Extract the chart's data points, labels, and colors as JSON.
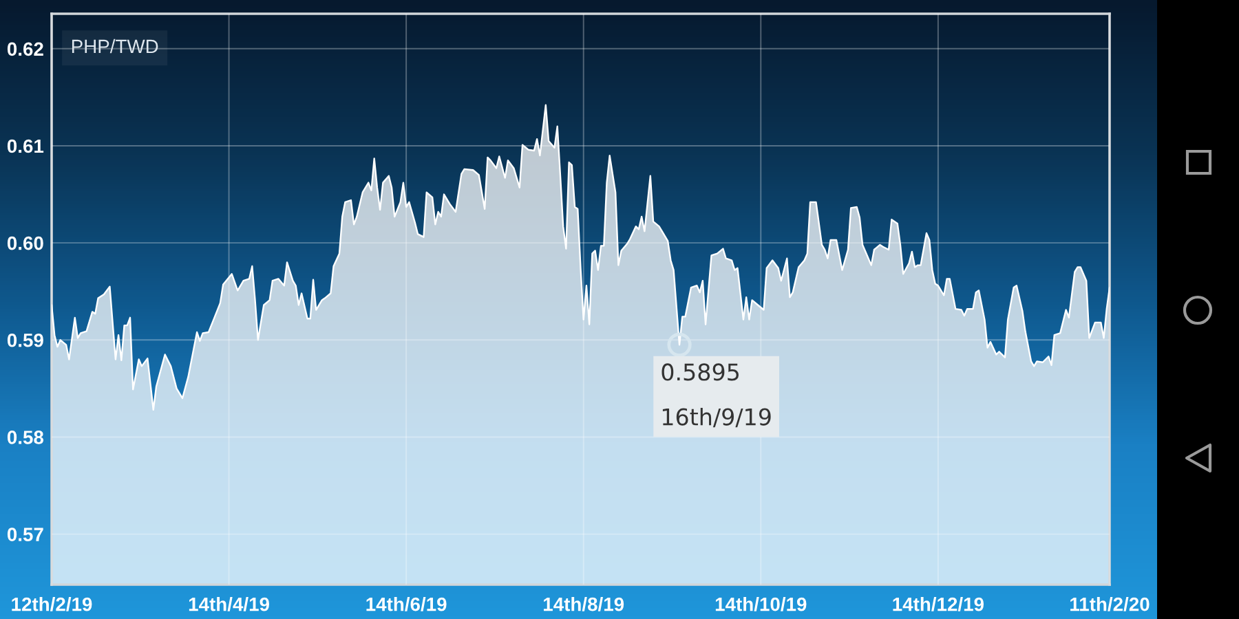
{
  "chart_data": {
    "type": "area",
    "title": "PHP/TWD",
    "x": [
      "2019-02-12",
      "2019-02-13",
      "2019-02-14",
      "2019-02-15",
      "2019-02-17",
      "2019-02-18",
      "2019-02-20",
      "2019-02-21",
      "2019-02-22",
      "2019-02-24",
      "2019-02-26",
      "2019-02-27",
      "2019-02-28",
      "2019-03-02",
      "2019-03-04",
      "2019-03-06",
      "2019-03-07",
      "2019-03-08",
      "2019-03-09",
      "2019-03-10",
      "2019-03-11",
      "2019-03-12",
      "2019-03-14",
      "2019-03-15",
      "2019-03-17",
      "2019-03-19",
      "2019-03-20",
      "2019-03-23",
      "2019-03-25",
      "2019-03-27",
      "2019-03-29",
      "2019-03-31",
      "2019-04-03",
      "2019-04-04",
      "2019-04-05",
      "2019-04-07",
      "2019-04-09",
      "2019-04-11",
      "2019-04-12",
      "2019-04-15",
      "2019-04-17",
      "2019-04-19",
      "2019-04-21",
      "2019-04-22",
      "2019-04-23",
      "2019-04-24",
      "2019-04-26",
      "2019-04-28",
      "2019-04-29",
      "2019-05-01",
      "2019-05-03",
      "2019-05-04",
      "2019-05-06",
      "2019-05-07",
      "2019-05-08",
      "2019-05-09",
      "2019-05-11",
      "2019-05-12",
      "2019-05-13",
      "2019-05-14",
      "2019-05-16",
      "2019-05-17",
      "2019-05-19",
      "2019-05-20",
      "2019-05-22",
      "2019-05-23",
      "2019-05-24",
      "2019-05-26",
      "2019-05-27",
      "2019-05-28",
      "2019-05-30",
      "2019-06-01",
      "2019-06-02",
      "2019-06-03",
      "2019-06-04",
      "2019-06-05",
      "2019-06-06",
      "2019-06-08",
      "2019-06-09",
      "2019-06-10",
      "2019-06-12",
      "2019-06-13",
      "2019-06-14",
      "2019-06-15",
      "2019-06-17",
      "2019-06-18",
      "2019-06-20",
      "2019-06-21",
      "2019-06-23",
      "2019-06-24",
      "2019-06-25",
      "2019-06-26",
      "2019-06-27",
      "2019-06-29",
      "2019-07-01",
      "2019-07-03",
      "2019-07-04",
      "2019-07-07",
      "2019-07-09",
      "2019-07-11",
      "2019-07-12",
      "2019-07-13",
      "2019-07-15",
      "2019-07-16",
      "2019-07-18",
      "2019-07-19",
      "2019-07-21",
      "2019-07-23",
      "2019-07-24",
      "2019-07-26",
      "2019-07-28",
      "2019-07-29",
      "2019-07-30",
      "2019-08-01",
      "2019-08-02",
      "2019-08-04",
      "2019-08-05",
      "2019-08-06",
      "2019-08-07",
      "2019-08-08",
      "2019-08-09",
      "2019-08-10",
      "2019-08-11",
      "2019-08-12",
      "2019-08-13",
      "2019-08-14",
      "2019-08-15",
      "2019-08-16",
      "2019-08-17",
      "2019-08-18",
      "2019-08-19",
      "2019-08-20",
      "2019-08-21",
      "2019-08-22",
      "2019-08-23",
      "2019-08-25",
      "2019-08-26",
      "2019-08-27",
      "2019-08-29",
      "2019-08-30",
      "2019-09-01",
      "2019-09-02",
      "2019-09-03",
      "2019-09-04",
      "2019-09-06",
      "2019-09-07",
      "2019-09-09",
      "2019-09-10",
      "2019-09-12",
      "2019-09-13",
      "2019-09-14",
      "2019-09-16",
      "2019-09-17",
      "2019-09-18",
      "2019-09-20",
      "2019-09-22",
      "2019-09-23",
      "2019-09-24",
      "2019-09-25",
      "2019-09-27",
      "2019-09-29",
      "2019-10-01",
      "2019-10-02",
      "2019-10-04",
      "2019-10-05",
      "2019-10-06",
      "2019-10-08",
      "2019-10-09",
      "2019-10-10",
      "2019-10-11",
      "2019-10-13",
      "2019-10-15",
      "2019-10-16",
      "2019-10-18",
      "2019-10-20",
      "2019-10-21",
      "2019-10-23",
      "2019-10-24",
      "2019-10-25",
      "2019-10-27",
      "2019-10-29",
      "2019-10-30",
      "2019-10-31",
      "2019-11-02",
      "2019-11-04",
      "2019-11-05",
      "2019-11-06",
      "2019-11-07",
      "2019-11-09",
      "2019-11-11",
      "2019-11-13",
      "2019-11-14",
      "2019-11-16",
      "2019-11-17",
      "2019-11-18",
      "2019-11-19",
      "2019-11-21",
      "2019-11-22",
      "2019-11-24",
      "2019-11-25",
      "2019-11-27",
      "2019-11-28",
      "2019-11-30",
      "2019-12-01",
      "2019-12-02",
      "2019-12-04",
      "2019-12-05",
      "2019-12-06",
      "2019-12-07",
      "2019-12-08",
      "2019-12-10",
      "2019-12-11",
      "2019-12-12",
      "2019-12-13",
      "2019-12-14",
      "2019-12-16",
      "2019-12-17",
      "2019-12-18",
      "2019-12-20",
      "2019-12-22",
      "2019-12-23",
      "2019-12-24",
      "2019-12-26",
      "2019-12-27",
      "2019-12-28",
      "2019-12-30",
      "2019-12-31",
      "2020-01-01",
      "2020-01-03",
      "2020-01-04",
      "2020-01-06",
      "2020-01-07",
      "2020-01-09",
      "2020-01-10",
      "2020-01-12",
      "2020-01-13",
      "2020-01-15",
      "2020-01-16",
      "2020-01-17",
      "2020-01-19",
      "2020-01-21",
      "2020-01-22",
      "2020-01-23",
      "2020-01-25",
      "2020-01-27",
      "2020-01-28",
      "2020-01-30",
      "2020-01-31",
      "2020-02-01",
      "2020-02-03",
      "2020-02-04",
      "2020-02-06",
      "2020-02-07",
      "2020-02-08",
      "2020-02-09",
      "2020-02-10",
      "2020-02-11"
    ],
    "series": [
      {
        "color": "#ffffff",
        "values": [
          0.5936,
          0.5905,
          0.5893,
          0.59,
          0.5895,
          0.588,
          0.5923,
          0.5902,
          0.5907,
          0.5909,
          0.5929,
          0.5927,
          0.5943,
          0.5947,
          0.5955,
          0.588,
          0.5905,
          0.5879,
          0.5915,
          0.5915,
          0.5923,
          0.5849,
          0.588,
          0.5873,
          0.5881,
          0.5828,
          0.5852,
          0.5885,
          0.5873,
          0.585,
          0.584,
          0.5862,
          0.5908,
          0.5899,
          0.5907,
          0.5908,
          0.5923,
          0.5938,
          0.5957,
          0.5968,
          0.5951,
          0.5961,
          0.5963,
          0.5976,
          0.5941,
          0.59,
          0.5936,
          0.5941,
          0.5961,
          0.5963,
          0.5956,
          0.598,
          0.5961,
          0.5956,
          0.5936,
          0.5948,
          0.5922,
          0.5922,
          0.5962,
          0.5931,
          0.5941,
          0.5943,
          0.5948,
          0.5976,
          0.5989,
          0.6027,
          0.6042,
          0.6044,
          0.6019,
          0.6027,
          0.6052,
          0.6062,
          0.6054,
          0.6087,
          0.6057,
          0.6034,
          0.6062,
          0.6069,
          0.6057,
          0.6027,
          0.6042,
          0.6062,
          0.6037,
          0.6042,
          0.6021,
          0.6009,
          0.6006,
          0.6052,
          0.6047,
          0.6019,
          0.6032,
          0.6027,
          0.605,
          0.604,
          0.6032,
          0.6071,
          0.6076,
          0.6075,
          0.607,
          0.6035,
          0.6088,
          0.6085,
          0.6077,
          0.6089,
          0.6067,
          0.6085,
          0.6077,
          0.6057,
          0.6101,
          0.6096,
          0.6095,
          0.6107,
          0.609,
          0.6142,
          0.6105,
          0.6098,
          0.612,
          0.607,
          0.6017,
          0.5994,
          0.6083,
          0.608,
          0.6037,
          0.6035,
          0.5974,
          0.5921,
          0.5956,
          0.5916,
          0.5989,
          0.5992,
          0.5972,
          0.5997,
          0.5997,
          0.6062,
          0.609,
          0.6052,
          0.5977,
          0.5992,
          0.5999,
          0.6004,
          0.6017,
          0.6014,
          0.6027,
          0.6012,
          0.6069,
          0.6022,
          0.6017,
          0.6012,
          0.6002,
          0.5982,
          0.5972,
          0.5895,
          0.5924,
          0.5924,
          0.5954,
          0.5956,
          0.5949,
          0.5961,
          0.5916,
          0.5987,
          0.5989,
          0.5994,
          0.5984,
          0.5982,
          0.5972,
          0.5974,
          0.5921,
          0.5944,
          0.5921,
          0.5941,
          0.5936,
          0.5931,
          0.5974,
          0.5982,
          0.5974,
          0.5961,
          0.5984,
          0.5944,
          0.5949,
          0.5975,
          0.5982,
          0.5989,
          0.6042,
          0.6042,
          0.5998,
          0.5993,
          0.5984,
          0.6003,
          0.6003,
          0.5972,
          0.5993,
          0.6036,
          0.6037,
          0.6026,
          0.5998,
          0.5991,
          0.5977,
          0.5993,
          0.5998,
          0.5996,
          0.5993,
          0.6024,
          0.602,
          0.5998,
          0.5968,
          0.5979,
          0.5991,
          0.5975,
          0.5977,
          0.5977,
          0.601,
          0.6003,
          0.5972,
          0.5958,
          0.5956,
          0.5946,
          0.5963,
          0.5963,
          0.5932,
          0.5931,
          0.5925,
          0.5932,
          0.5932,
          0.5949,
          0.5951,
          0.5921,
          0.5892,
          0.5898,
          0.5885,
          0.5888,
          0.5882,
          0.5921,
          0.5954,
          0.5956,
          0.593,
          0.5909,
          0.5878,
          0.5873,
          0.5878,
          0.5877,
          0.5883,
          0.5874,
          0.5905,
          0.5907,
          0.5931,
          0.5923,
          0.597,
          0.5975,
          0.5975,
          0.5961,
          0.5902,
          0.5918,
          0.5918,
          0.5918,
          0.5902,
          0.5932,
          0.5954
        ]
      }
    ],
    "xlim": [
      "2019-02-12",
      "2020-02-11"
    ],
    "xticks": [
      {
        "value": "2019-02-12",
        "label": "12th/2/19"
      },
      {
        "value": "2019-04-14",
        "label": "14th/4/19"
      },
      {
        "value": "2019-06-14",
        "label": "14th/6/19"
      },
      {
        "value": "2019-08-14",
        "label": "14th/8/19"
      },
      {
        "value": "2019-10-14",
        "label": "14th/10/19"
      },
      {
        "value": "2019-12-14",
        "label": "14th/12/19"
      },
      {
        "value": "2020-02-11",
        "label": "11th/2/20"
      }
    ],
    "ylim": [
      0.5648,
      0.6236
    ],
    "yticks": [
      0.57,
      0.58,
      0.59,
      {
        "value": 0.6,
        "label": "0.60"
      },
      0.61,
      0.62
    ],
    "grid": true,
    "annotations": [
      {
        "text": "0.5895\n16th/9/19",
        "x": "2019-09-16",
        "y": 0.5895
      }
    ]
  }
}
